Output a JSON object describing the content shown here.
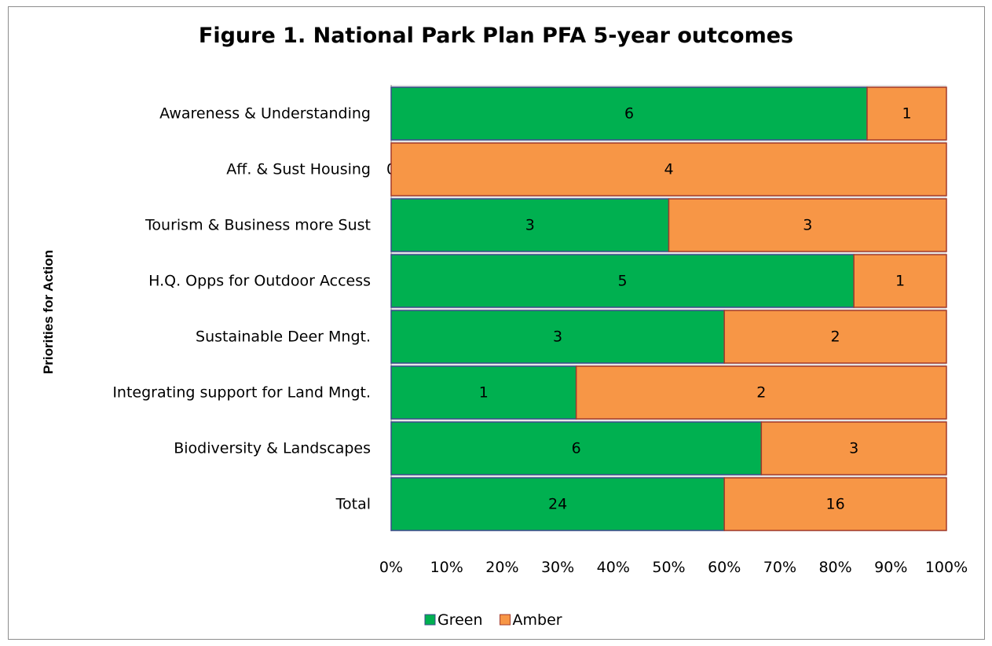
{
  "chart_data": {
    "type": "bar",
    "orientation": "horizontal",
    "stacked": "percent",
    "title": "Figure 1. National Park Plan PFA 5-year outcomes",
    "ylabel": "Priorities for Action",
    "xlabel": "",
    "xlim": [
      0,
      100
    ],
    "x_ticks": [
      "0%",
      "10%",
      "20%",
      "30%",
      "40%",
      "50%",
      "60%",
      "70%",
      "80%",
      "90%",
      "100%"
    ],
    "categories": [
      "Awareness & Understanding",
      "Aff. & Sust Housing",
      "Tourism & Business more Sust",
      "H.Q. Opps for Outdoor Access",
      "Sustainable Deer Mngt.",
      "Integrating support for Land Mngt.",
      "Biodiversity & Landscapes",
      "Total"
    ],
    "series": [
      {
        "name": "Green",
        "color": "#00b050",
        "values": [
          6,
          0,
          3,
          5,
          3,
          1,
          6,
          24
        ]
      },
      {
        "name": "Amber",
        "color": "#f79646",
        "values": [
          1,
          4,
          3,
          1,
          2,
          2,
          3,
          16
        ]
      }
    ],
    "legend_position": "bottom",
    "plot_background": "#e6e6e6",
    "grid": false
  }
}
